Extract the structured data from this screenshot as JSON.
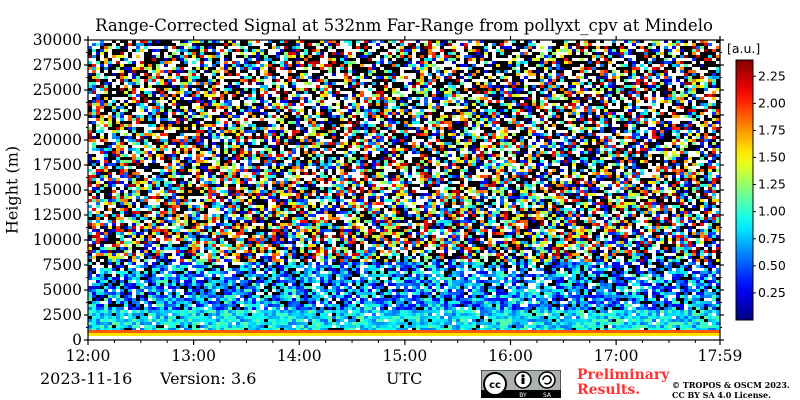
{
  "chart_data": {
    "type": "heatmap",
    "title": "Range-Corrected Signal at 532nm Far-Range from pollyxt_cpv at Mindelo",
    "ylabel": "Height (m)",
    "xlabel": "UTC",
    "x_ticks": [
      "12:00",
      "13:00",
      "14:00",
      "15:00",
      "16:00",
      "17:00",
      "17:59"
    ],
    "xlim": [
      "12:00",
      "17:59"
    ],
    "y_ticks": [
      0,
      2500,
      5000,
      7500,
      10000,
      12500,
      15000,
      17500,
      20000,
      22500,
      25000,
      27500,
      30000
    ],
    "ylim": [
      0,
      30000
    ],
    "colorbar": {
      "unit_label": "[a.u.]",
      "ticks": [
        0.25,
        0.5,
        0.75,
        1.0,
        1.25,
        1.5,
        1.75,
        2.0,
        2.25
      ],
      "tick_labels": [
        "0.25",
        "0.50",
        "0.75",
        "1.00",
        "1.25",
        "1.50",
        "1.75",
        "2.00",
        "2.25"
      ],
      "range": [
        0,
        2.4
      ],
      "colormap": "jet"
    }
  },
  "footer": {
    "date": "2023-11-16",
    "version": "Version: 3.6",
    "axis_unit": "UTC",
    "preliminary_line1": "Preliminary",
    "preliminary_line2": "Results.",
    "copyright_line1": "© TROPOS & OSCM 2023.",
    "copyright_line2": "CC BY SA 4.0 License.",
    "license_badge_by": "BY",
    "license_badge_sa": "SA"
  },
  "colors": {
    "prelim_text": "#ff3333",
    "badge_bg": "#aab2ab"
  }
}
